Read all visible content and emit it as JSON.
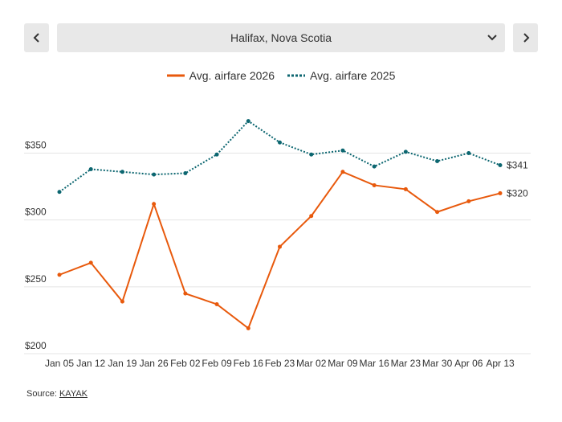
{
  "navigation": {
    "location": "Halifax, Nova Scotia"
  },
  "chart_data": {
    "type": "line",
    "categories": [
      "Jan 05",
      "Jan 12",
      "Jan 19",
      "Jan 26",
      "Feb 02",
      "Feb 09",
      "Feb 16",
      "Feb 23",
      "Mar 02",
      "Mar 09",
      "Mar 16",
      "Mar 23",
      "Mar 30",
      "Apr 06",
      "Apr 13"
    ],
    "series": [
      {
        "name": "Avg. airfare 2026",
        "color": "#e8590c",
        "style": "solid",
        "values": [
          259,
          268,
          239,
          312,
          245,
          237,
          219,
          280,
          303,
          336,
          326,
          323,
          306,
          314,
          320
        ],
        "end_label": "$320"
      },
      {
        "name": "Avg. airfare 2025",
        "color": "#0c6670",
        "style": "dotted",
        "values": [
          321,
          338,
          336,
          334,
          335,
          349,
          374,
          358,
          349,
          352,
          340,
          351,
          344,
          350,
          341
        ],
        "end_label": "$341"
      }
    ],
    "yticks": [
      "$200",
      "$250",
      "$300",
      "$350"
    ],
    "ytick_values": [
      200,
      250,
      300,
      350
    ],
    "ylim": [
      200,
      390
    ],
    "grid": true,
    "legend_position": "top-center"
  },
  "source": {
    "prefix": "Source: ",
    "link_text": "KAYAK"
  }
}
